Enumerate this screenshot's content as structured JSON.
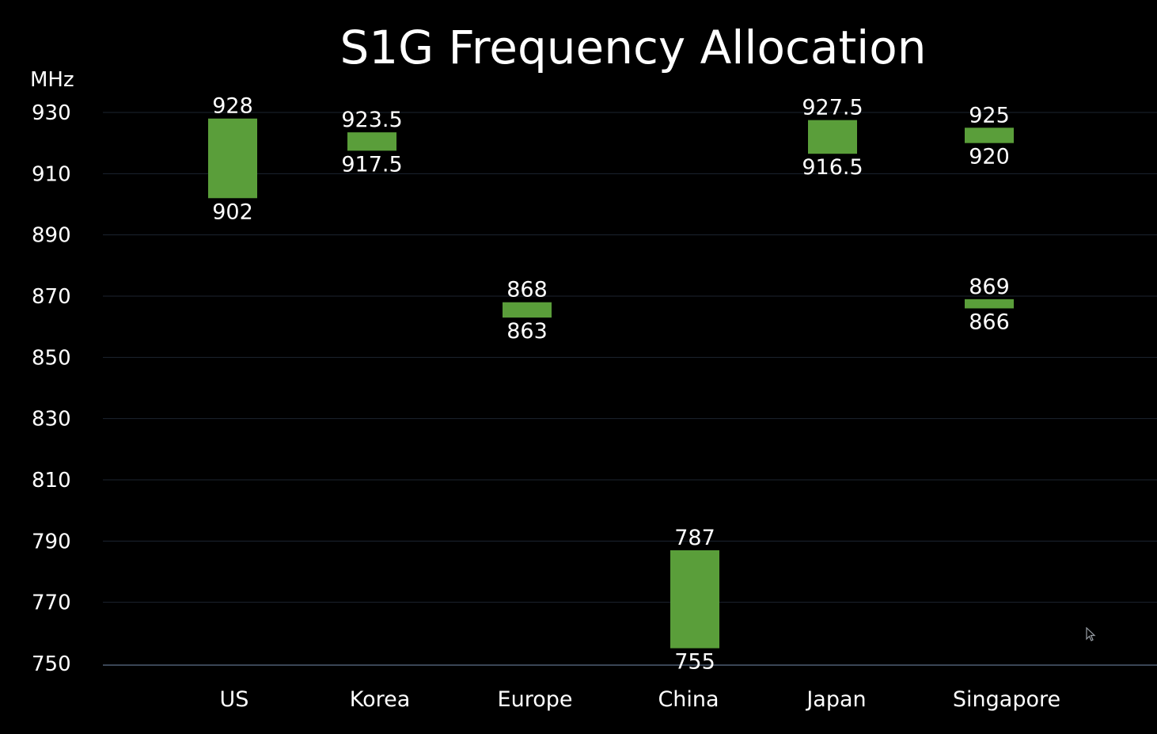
{
  "chart_data": {
    "type": "bar",
    "title": "S1G Frequency Allocation",
    "unit_label": "MHz",
    "ylim": [
      750,
      930
    ],
    "yticks": [
      930,
      910,
      890,
      870,
      850,
      830,
      810,
      790,
      770,
      750
    ],
    "grid": true,
    "categories": [
      "US",
      "Korea",
      "Europe",
      "China",
      "Japan",
      "Singapore"
    ],
    "bands": [
      {
        "category": "US",
        "low": 902,
        "high": 928,
        "low_label": "902",
        "high_label": "928"
      },
      {
        "category": "Korea",
        "low": 917.5,
        "high": 923.5,
        "low_label": "917.5",
        "high_label": "923.5"
      },
      {
        "category": "Europe",
        "low": 863,
        "high": 868,
        "low_label": "863",
        "high_label": "868"
      },
      {
        "category": "China",
        "low": 755,
        "high": 787,
        "low_label": "755",
        "high_label": "787"
      },
      {
        "category": "Japan",
        "low": 916.5,
        "high": 927.5,
        "low_label": "916.5",
        "high_label": "927.5"
      },
      {
        "category": "Singapore",
        "low": 920,
        "high": 925,
        "low_label": "920",
        "high_label": "925"
      },
      {
        "category": "Singapore",
        "low": 866,
        "high": 869,
        "low_label": "866",
        "high_label": "869"
      }
    ],
    "colors": {
      "bar": "#5a9e3a",
      "background": "#000000",
      "text": "#ffffff",
      "grid": "#1c2430",
      "axis": "#3a4656"
    }
  },
  "icons": {
    "cursor": "mouse-pointer-icon"
  }
}
